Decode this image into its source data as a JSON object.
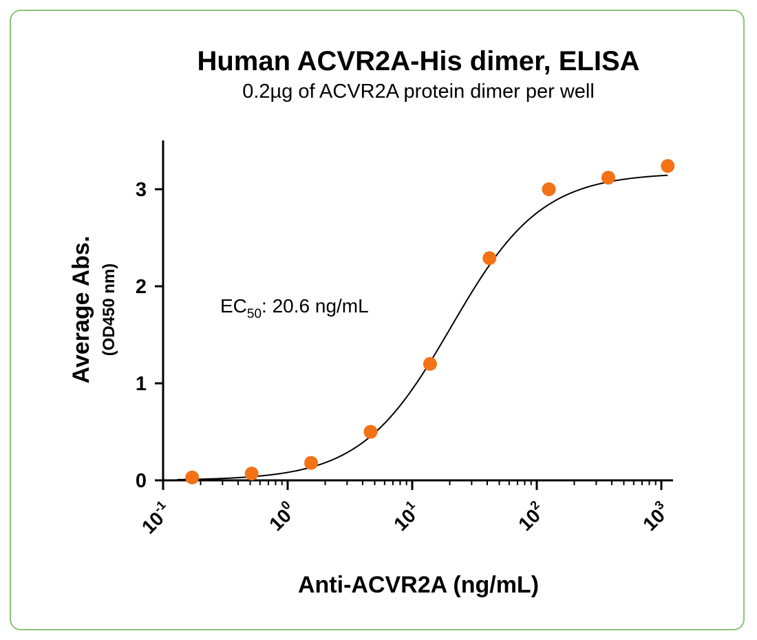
{
  "chart_data": {
    "type": "scatter",
    "title": "Human ACVR2A-His dimer, ELISA",
    "subtitle": "0.2µg of ACVR2A protein dimer per well",
    "ylabel": "Average Abs.",
    "ylabel_sub": "(OD450 nm)",
    "xlabel": "Anti-ACVR2A (ng/mL)",
    "xscale": "log",
    "xlim": [
      0.1,
      1200
    ],
    "ylim": [
      0,
      3.5
    ],
    "yticks": [
      {
        "value": 0,
        "label": "0"
      },
      {
        "value": 1,
        "label": "1"
      },
      {
        "value": 2,
        "label": "2"
      },
      {
        "value": 3,
        "label": "3"
      }
    ],
    "xticks": [
      {
        "value": 0.1,
        "base": "10",
        "exp": "-1"
      },
      {
        "value": 1,
        "base": "10",
        "exp": "0"
      },
      {
        "value": 10,
        "base": "10",
        "exp": "1"
      },
      {
        "value": 100,
        "base": "10",
        "exp": "2"
      },
      {
        "value": 1000,
        "base": "10",
        "exp": "3"
      }
    ],
    "series": [
      {
        "marker_color": "#f47216",
        "x": [
          0.171,
          0.514,
          1.543,
          4.63,
          13.9,
          41.7,
          125,
          375,
          1125
        ],
        "y": [
          0.03,
          0.07,
          0.18,
          0.5,
          1.2,
          2.29,
          3.0,
          3.12,
          3.24
        ]
      }
    ],
    "fit": {
      "model": "4PL",
      "bottom": 0.0,
      "top": 3.17,
      "ec50": 20.6,
      "hill": 1.2
    },
    "annotation": {
      "prefix": "EC",
      "subscript": "50",
      "suffix": ": 20.6 ng/mL"
    },
    "grid": false,
    "legend": "none"
  },
  "colors": {
    "border": "#8cc57a",
    "marker": "#f47216",
    "curve": "#000000"
  }
}
